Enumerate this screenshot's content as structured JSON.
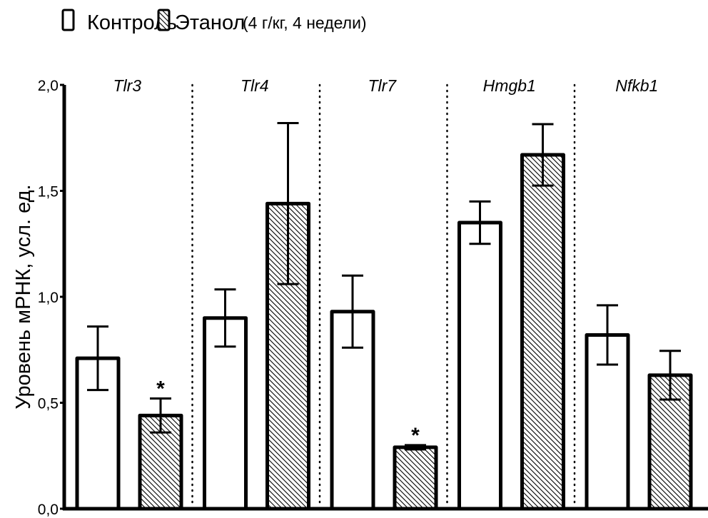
{
  "chart_data": {
    "type": "bar",
    "title": "",
    "xlabel": "",
    "ylabel": "Уровень мРНК, усл. ед.",
    "ylim": [
      0,
      2.0
    ],
    "yticks": [
      0,
      0.5,
      1.0,
      1.5,
      2.0
    ],
    "ytick_labels": [
      "0,0",
      "0,5",
      "1,0",
      "1,5",
      "2,0"
    ],
    "grid": false,
    "legend_position": "top-left",
    "legend": {
      "entries": [
        {
          "name": "Контроль",
          "pattern": "empty"
        },
        {
          "name": "Этанол",
          "pattern": "hatched"
        }
      ],
      "note": "(4 г/кг, 4 недели)"
    },
    "categories": [
      "Tlr3",
      "Tlr4",
      "Tlr7",
      "Hmgb1",
      "Nfkb1"
    ],
    "series": [
      {
        "name": "Контроль",
        "pattern": "empty",
        "values": [
          0.71,
          0.9,
          0.93,
          1.35,
          0.82
        ],
        "error": [
          0.15,
          0.135,
          0.17,
          0.1,
          0.14
        ],
        "significance": [
          "",
          "",
          "",
          "",
          ""
        ]
      },
      {
        "name": "Этанол",
        "pattern": "hatched",
        "values": [
          0.44,
          1.44,
          0.29,
          1.67,
          0.63
        ],
        "error": [
          0.08,
          0.38,
          0.01,
          0.145,
          0.115
        ],
        "significance": [
          "*",
          "",
          "*",
          "",
          ""
        ]
      }
    ],
    "colors": {
      "stroke": "#000000",
      "fill_control": "#ffffff",
      "hatch": "#000000"
    }
  }
}
